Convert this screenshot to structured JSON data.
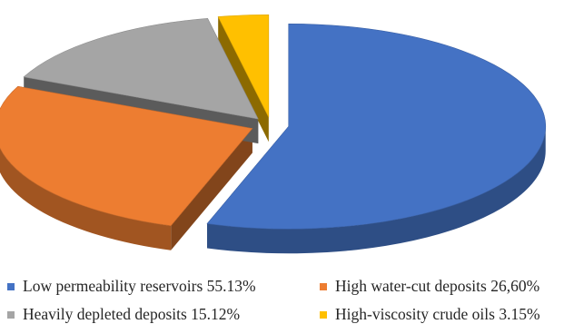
{
  "chart_data": {
    "type": "pie",
    "style": "3d-exploded",
    "categories": [
      "Low permeability reservoirs",
      "High water-cut deposits",
      "Heavily depleted deposits",
      "High-viscosity crude oils"
    ],
    "values": [
      55.13,
      26.6,
      15.12,
      3.15
    ],
    "legend": [
      {
        "label": "Low permeability reservoirs 55.13%",
        "color": "#4472C4"
      },
      {
        "label": "High water-cut deposits 26,60%",
        "color": "#ED7D31"
      },
      {
        "label": "Heavily depleted deposits 15.12%",
        "color": "#A5A5A5"
      },
      {
        "label": "High-viscosity crude oils 3.15%",
        "color": "#FFC000"
      }
    ],
    "legend_position": "bottom",
    "title": ""
  }
}
